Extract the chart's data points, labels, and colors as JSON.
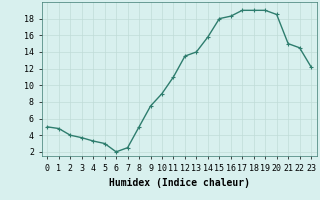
{
  "x": [
    0,
    1,
    2,
    3,
    4,
    5,
    6,
    7,
    8,
    9,
    10,
    11,
    12,
    13,
    14,
    15,
    16,
    17,
    18,
    19,
    20,
    21,
    22,
    23
  ],
  "y": [
    5,
    4.8,
    4,
    3.7,
    3.3,
    3,
    2,
    2.5,
    5,
    7.5,
    9,
    11,
    13.5,
    14,
    15.8,
    18,
    18.3,
    19,
    19,
    19,
    18.5,
    15,
    14.5,
    12.2
  ],
  "line_color": "#2e7d6e",
  "marker": "+",
  "markersize": 3,
  "linewidth": 1.0,
  "bg_color": "#d8f0ee",
  "grid_color": "#c0dcd8",
  "xlim": [
    -0.5,
    23.5
  ],
  "ylim": [
    1.5,
    20
  ],
  "xticks": [
    0,
    1,
    2,
    3,
    4,
    5,
    6,
    7,
    8,
    9,
    10,
    11,
    12,
    13,
    14,
    15,
    16,
    17,
    18,
    19,
    20,
    21,
    22,
    23
  ],
  "yticks": [
    2,
    4,
    6,
    8,
    10,
    12,
    14,
    16,
    18
  ],
  "xlabel": "Humidex (Indice chaleur)",
  "xlabel_fontsize": 7,
  "tick_fontsize": 6
}
